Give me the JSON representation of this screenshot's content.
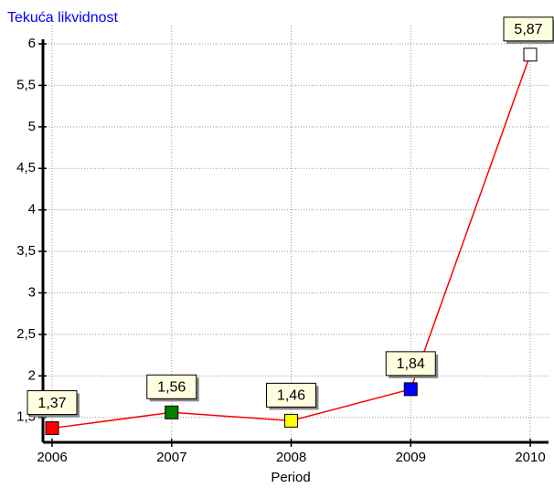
{
  "chart_data": {
    "type": "line",
    "title": "Tekuća likvidnost",
    "x_label": "Period",
    "categories": [
      "2006",
      "2007",
      "2008",
      "2009",
      "2010"
    ],
    "series": [
      {
        "name": "Tekuća likvidnost",
        "color": "#ff0000",
        "values": [
          1.37,
          1.56,
          1.46,
          1.84,
          5.87
        ],
        "value_labels": [
          "1,37",
          "1,56",
          "1,46",
          "1,84",
          "5,87"
        ],
        "point_colors": [
          "#ff0000",
          "#008000",
          "#ffff00",
          "#0000ff",
          "#ffffff"
        ]
      }
    ],
    "ylim": [
      1.2,
      6
    ],
    "yticks": [
      {
        "value": 1.5,
        "label": "1,5"
      },
      2,
      {
        "value": 2.5,
        "label": "2,5"
      },
      3,
      {
        "value": 3.5,
        "label": "3,5"
      },
      4,
      {
        "value": 4.5,
        "label": "4,5"
      },
      5,
      {
        "value": 5.5,
        "label": "5,5"
      },
      6
    ],
    "grid": true
  }
}
